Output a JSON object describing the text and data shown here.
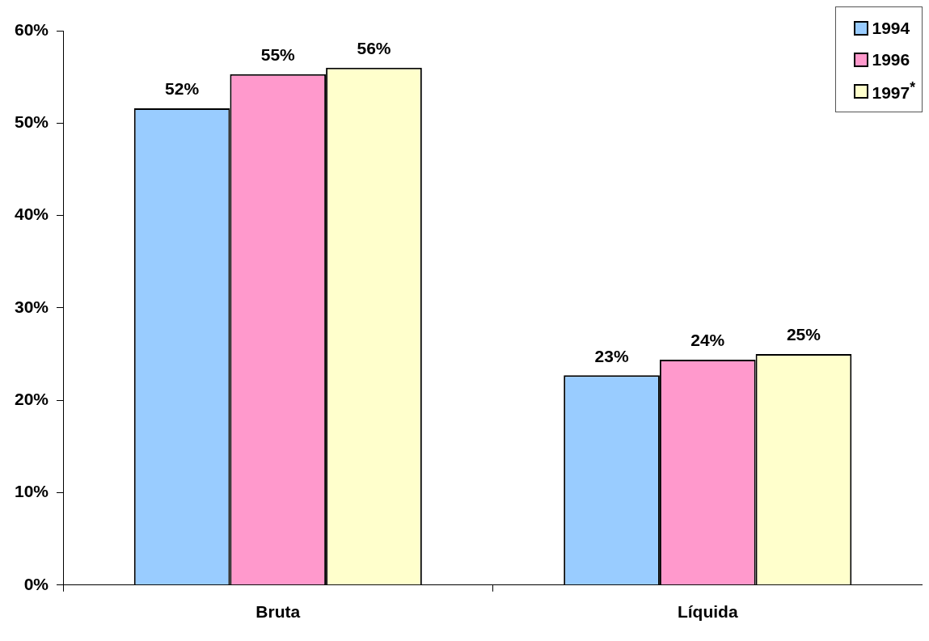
{
  "chart_data": {
    "type": "bar",
    "categories": [
      "Bruta",
      "Líquida"
    ],
    "series": [
      {
        "name": "1994",
        "color": "#99ccff",
        "values": [
          51.6,
          22.7
        ],
        "value_labels": [
          "52%",
          "23%"
        ]
      },
      {
        "name": "1996",
        "color": "#ff99cc",
        "values": [
          55.3,
          24.4
        ],
        "value_labels": [
          "55%",
          "24%"
        ]
      },
      {
        "name": "1997$^{*}$",
        "color": "#ffffcc",
        "values": [
          56.0,
          25.0
        ],
        "value_labels": [
          "56%",
          "25%"
        ]
      }
    ],
    "ylim": [
      0,
      60
    ],
    "yticks": [
      {
        "value": 0,
        "label": "0%"
      },
      {
        "value": 10,
        "label": "10%"
      },
      {
        "value": 20,
        "label": "20%"
      },
      {
        "value": 30,
        "label": "30%"
      },
      {
        "value": 40,
        "label": "40%"
      },
      {
        "value": 50,
        "label": "50%"
      },
      {
        "value": 60,
        "label": "60%"
      }
    ],
    "grid": false,
    "legend": "top right"
  }
}
